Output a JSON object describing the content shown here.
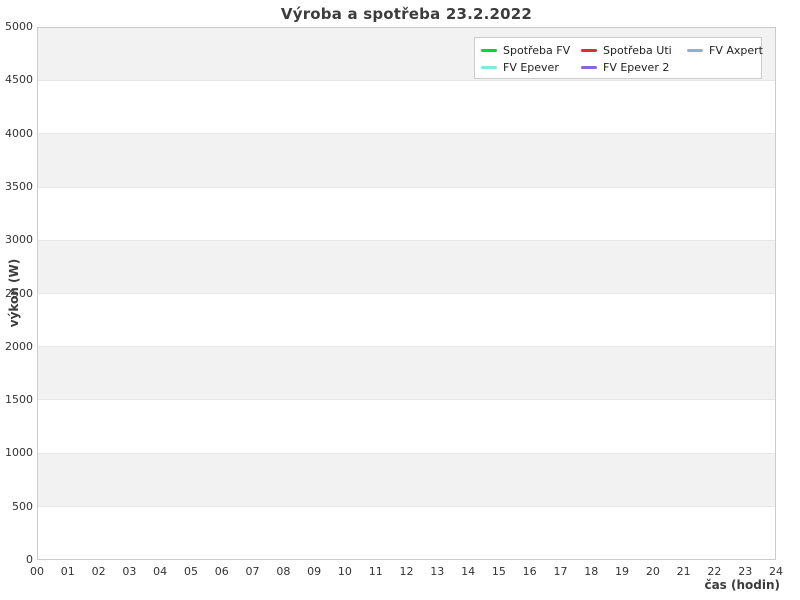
{
  "chart_data": {
    "type": "line",
    "title": "Výroba a spotřeba 23.2.2022",
    "xlabel": "čas (hodin)",
    "ylabel": "výkon (W)",
    "xlim": [
      0,
      24
    ],
    "ylim": [
      0,
      5000
    ],
    "x_ticks": [
      "00",
      "01",
      "02",
      "03",
      "04",
      "05",
      "06",
      "07",
      "08",
      "09",
      "10",
      "11",
      "12",
      "13",
      "14",
      "15",
      "16",
      "17",
      "18",
      "19",
      "20",
      "21",
      "22",
      "23",
      "24"
    ],
    "y_ticks": [
      0,
      500,
      1000,
      1500,
      2000,
      2500,
      3000,
      3500,
      4000,
      4500,
      5000
    ],
    "grid": "alternating horizontal bands, gray stripe at top",
    "legend_position": "top-right",
    "series": [
      {
        "name": "Spotřeba FV",
        "color": "#00d927",
        "values": []
      },
      {
        "name": "Spotřeba Uti",
        "color": "#e02c2c",
        "values": []
      },
      {
        "name": "FV Axpert",
        "color": "#8cb0dd",
        "values": []
      },
      {
        "name": "FV Epever",
        "color": "#77eedd",
        "values": []
      },
      {
        "name": "FV Epever 2",
        "color": "#8c66d9",
        "values": []
      }
    ]
  },
  "style": {
    "band_gray": "#f2f2f2",
    "grid_line": "#e7e7e7",
    "plot_border": "#cccccc",
    "text_color": "#3c3c3c"
  }
}
